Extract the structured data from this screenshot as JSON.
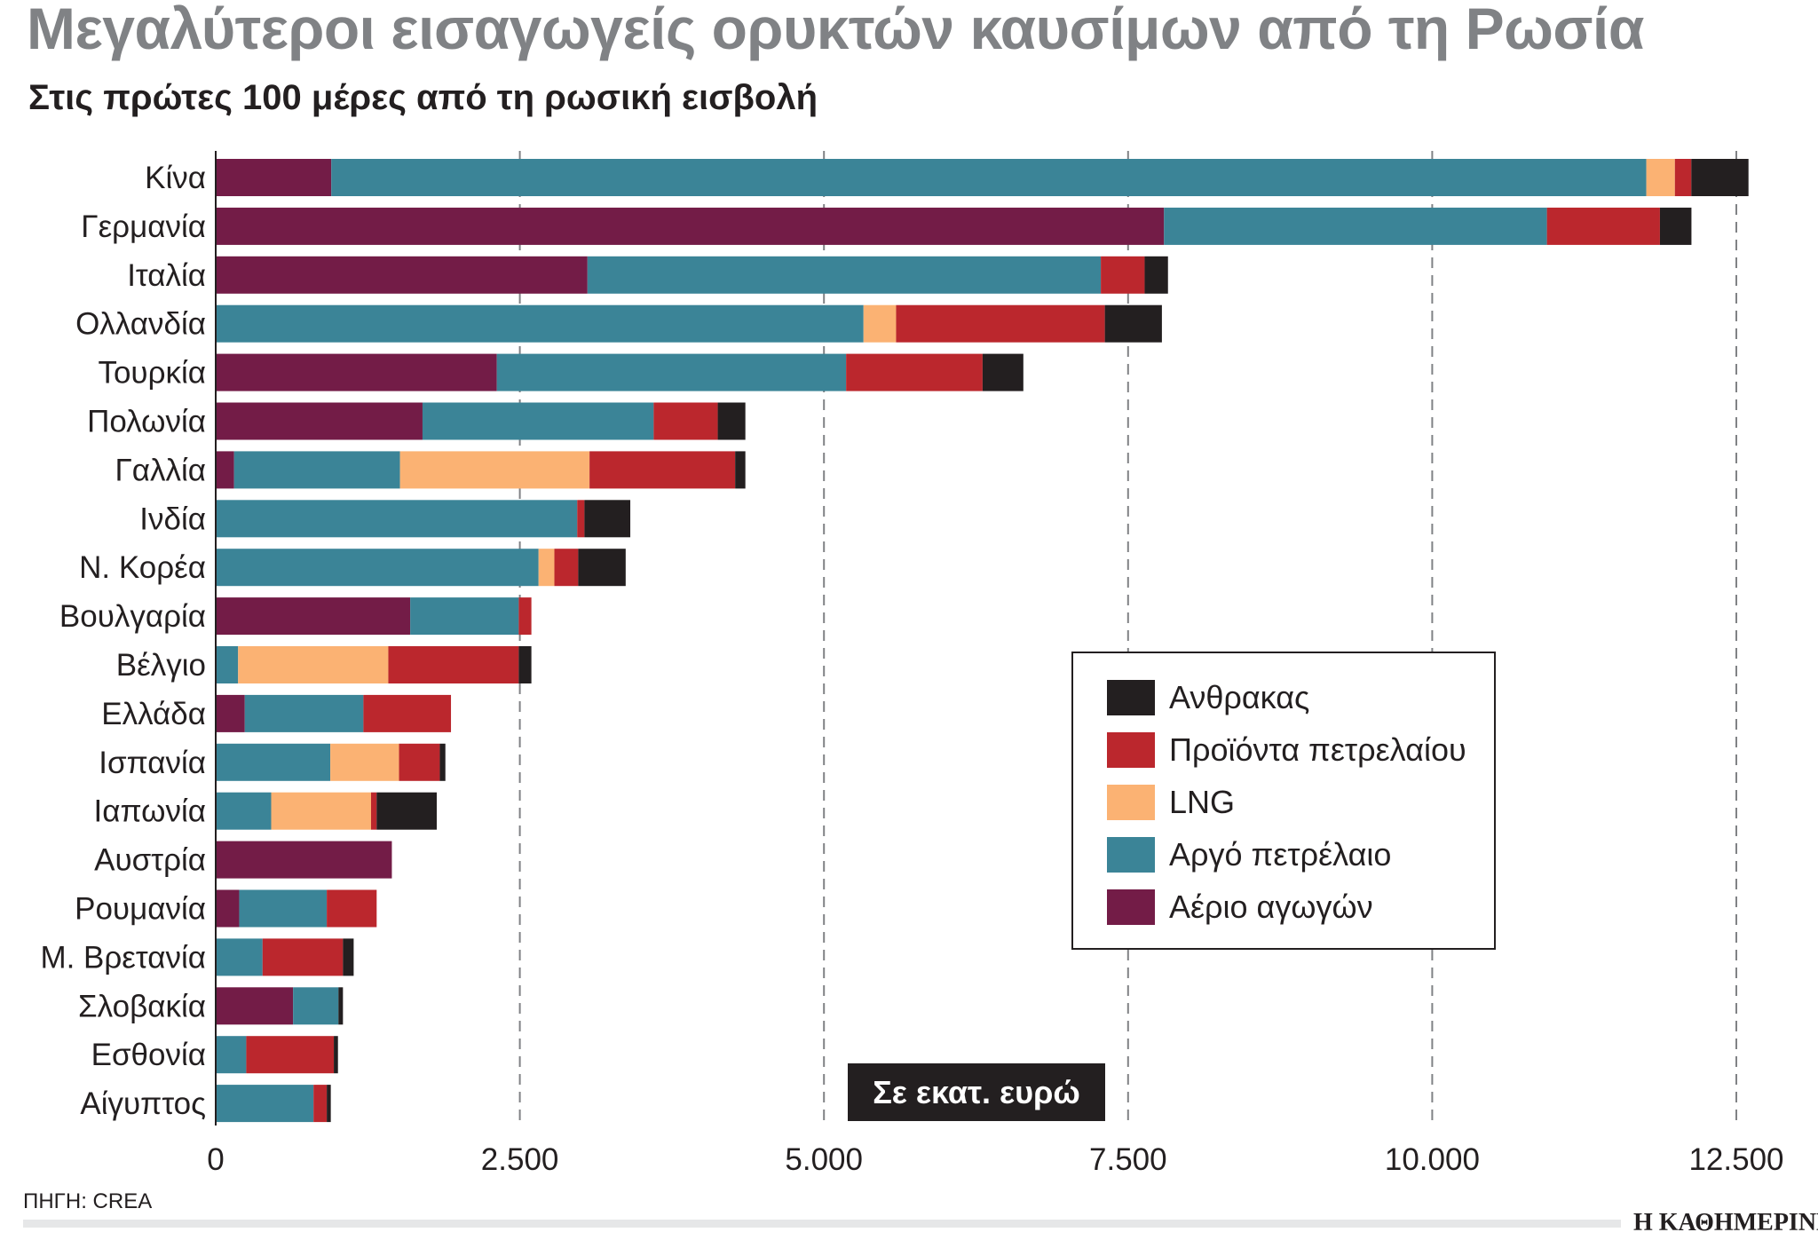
{
  "header": {
    "title": "Μεγαλύτεροι εισαγωγείς ορυκτών καυσίμων από τη Ρωσία",
    "subtitle": "Στις πρώτες 100 μέρες από τη ρωσική εισβολή"
  },
  "unit_label": "Σε εκατ. ευρώ",
  "source": "ΠΗΓΗ: CREA",
  "logo": "Η ΚΑΘΗΜΕΡΙΝΗ",
  "chart_data": {
    "type": "bar",
    "orientation": "horizontal",
    "stacked": true,
    "title": "Μεγαλύτεροι εισαγωγείς ορυκτών καυσίμων από τη Ρωσία",
    "xlabel": "",
    "ylabel": "",
    "xlim": [
      0,
      12500
    ],
    "xticks": [
      0,
      2500,
      5000,
      7500,
      10000,
      12500
    ],
    "xtick_labels": [
      "0",
      "2.500",
      "5.000",
      "7.500",
      "10.000",
      "12.500"
    ],
    "grid": "vertical dashed",
    "legend_position": "right-center",
    "categories": [
      "Κίνα",
      "Γερμανία",
      "Ιταλία",
      "Ολλανδία",
      "Τουρκία",
      "Πολωνία",
      "Γαλλία",
      "Ινδία",
      "Ν. Κορέα",
      "Βουλγαρία",
      "Βέλγιο",
      "Ελλάδα",
      "Ισπανία",
      "Ιαπωνία",
      "Αυστρία",
      "Ρουμανία",
      "Μ. Βρετανία",
      "Σλοβακία",
      "Εσθονία",
      "Αίγυπτος"
    ],
    "series": [
      {
        "name": "Αέριο αγωγών",
        "color": "#731c47",
        "values": [
          950,
          7795,
          3056,
          0,
          2311,
          1700,
          151,
          0,
          0,
          1599,
          0,
          239,
          0,
          0,
          1448,
          193,
          0,
          636,
          0,
          0
        ]
      },
      {
        "name": "Αργό πετρέλαιο",
        "color": "#3b8497",
        "values": [
          10810,
          3148,
          4220,
          5325,
          2871,
          1900,
          1364,
          2972,
          2654,
          892,
          184,
          975,
          942,
          456,
          0,
          720,
          385,
          373,
          251,
          804
        ]
      },
      {
        "name": "LNG",
        "color": "#fbb273",
        "values": [
          235,
          0,
          0,
          268,
          0,
          0,
          1558,
          0,
          130,
          0,
          1235,
          0,
          565,
          821,
          0,
          0,
          0,
          0,
          0,
          0
        ]
      },
      {
        "name": "Προϊόντα πετρελαίου",
        "color": "#bb272d",
        "values": [
          135,
          929,
          360,
          1716,
          1122,
          527,
          1197,
          59,
          196,
          104,
          1072,
          720,
          335,
          46,
          0,
          410,
          661,
          0,
          720,
          109
        ]
      },
      {
        "name": "Ανθρακας",
        "color": "#231f20",
        "values": [
          470,
          259,
          192,
          469,
          335,
          227,
          84,
          377,
          390,
          0,
          104,
          0,
          46,
          494,
          0,
          0,
          88,
          37,
          34,
          33
        ]
      }
    ],
    "legend_order": [
      4,
      3,
      2,
      1,
      0
    ]
  }
}
